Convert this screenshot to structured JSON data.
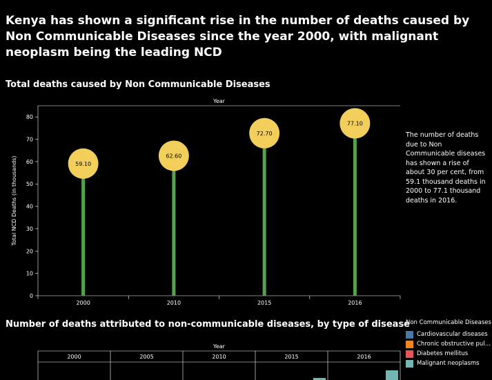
{
  "headline": "Kenya has shown a significant rise in the number of deaths caused by Non Communicable Diseases since the year 2000, with malignant neoplasm being the leading NCD",
  "chart1": {
    "title": "Total deaths caused by Non Communicable Diseases",
    "annotation": "The number of deaths due to Non Communicable diseases has shown a rise of about 30 per cent, from 59.1 thousand deaths in 2000 to 77.1 thousand deaths in 2016."
  },
  "chart2": {
    "title": "Number of deaths attributed to non-communicable diseases, by type of disease"
  },
  "legend": {
    "title": "Non Communicable Diseases",
    "items": [
      {
        "label": "Cardiovascular diseases",
        "color": "#4c78a8"
      },
      {
        "label": "Chronic obstructive pul…",
        "color": "#f58518"
      },
      {
        "label": "Diabetes mellitus",
        "color": "#e45756"
      },
      {
        "label": "Malignant neoplasms",
        "color": "#72b7b2"
      }
    ]
  },
  "colors": {
    "stem": "#54a24b",
    "circle": "#f2cf5b",
    "axis": "#ffffff"
  },
  "chart_data": [
    {
      "type": "lollipop",
      "title": "Total deaths caused by Non Communicable Diseases",
      "xlabel": "Year",
      "ylabel": "Total NCD Deaths (in thousands)",
      "x_axis_position": "top-and-bottom",
      "categories": [
        "2000",
        "2010",
        "2015",
        "2016"
      ],
      "values": [
        59.1,
        62.6,
        72.7,
        77.1
      ],
      "value_labels": [
        "59.10",
        "62.60",
        "72.70",
        "77.10"
      ],
      "ylim": [
        0,
        85
      ],
      "yticks": [
        0,
        10,
        20,
        30,
        40,
        50,
        60,
        70,
        80
      ],
      "grid": false
    },
    {
      "type": "bar",
      "title": "Number of deaths attributed to non-communicable diseases, by type of disease",
      "xlabel": "Year",
      "facets": [
        "2000",
        "2005",
        "2010",
        "2015",
        "2016"
      ],
      "series_names": [
        "Cardiovascular diseases",
        "Chronic obstructive pul…",
        "Diabetes mellitus",
        "Malignant neoplasms"
      ],
      "legend_position": "right",
      "partially_visible": true
    }
  ]
}
